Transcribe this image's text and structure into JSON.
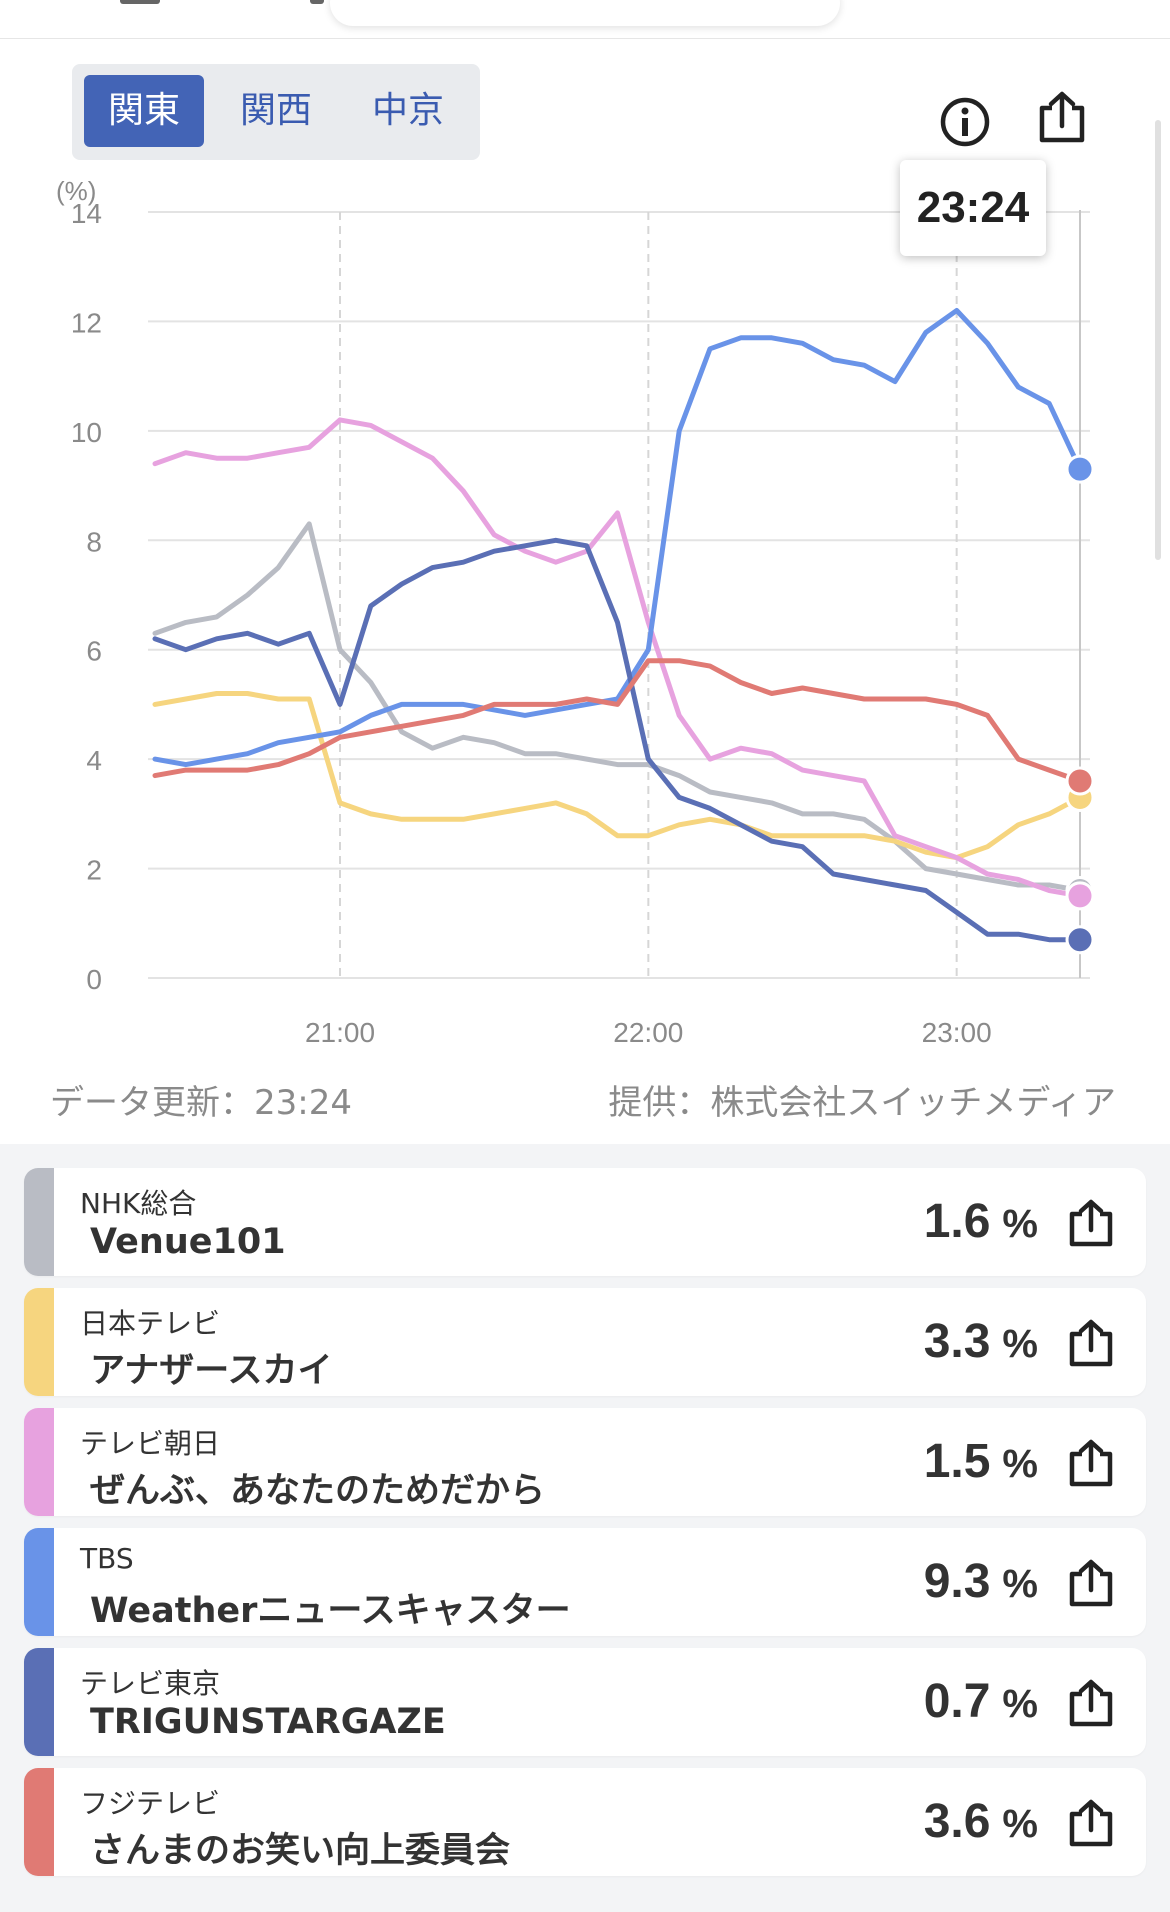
{
  "region_tabs": [
    {
      "label": "関東",
      "active": true
    },
    {
      "label": "関西",
      "active": false
    },
    {
      "label": "中京",
      "active": false
    }
  ],
  "icons": {
    "info": "info-icon",
    "share": "share-icon"
  },
  "tooltip_time": "23:24",
  "footer": {
    "updated": "データ更新：23:24",
    "provider": "提供：株式会社スイッチメディア"
  },
  "chart_data": {
    "type": "line",
    "ylabel": "(%)",
    "ylim": [
      0,
      14
    ],
    "yticks": [
      "0",
      "2",
      "4",
      "6",
      "8",
      "10",
      "12",
      "14"
    ],
    "xtick_labels": [
      "21:00",
      "22:00",
      "23:00"
    ],
    "x": [
      "20:24",
      "20:30",
      "20:36",
      "20:42",
      "20:48",
      "20:54",
      "21:00",
      "21:06",
      "21:12",
      "21:18",
      "21:24",
      "21:30",
      "21:36",
      "21:42",
      "21:48",
      "21:54",
      "22:00",
      "22:06",
      "22:12",
      "22:18",
      "22:24",
      "22:30",
      "22:36",
      "22:42",
      "22:48",
      "22:54",
      "23:00",
      "23:06",
      "23:12",
      "23:18",
      "23:24"
    ],
    "grid": "on",
    "series": [
      {
        "name": "NHK総合",
        "color": "#b9bcc4",
        "values": [
          6.3,
          6.5,
          6.6,
          7.0,
          7.5,
          8.3,
          6.0,
          5.4,
          4.5,
          4.2,
          4.4,
          4.3,
          4.1,
          4.1,
          4.0,
          3.9,
          3.9,
          3.7,
          3.4,
          3.3,
          3.2,
          3.0,
          3.0,
          2.9,
          2.5,
          2.0,
          1.9,
          1.8,
          1.7,
          1.7,
          1.6
        ]
      },
      {
        "name": "日本テレビ",
        "color": "#f6d57f",
        "values": [
          5.0,
          5.1,
          5.2,
          5.2,
          5.1,
          5.1,
          3.2,
          3.0,
          2.9,
          2.9,
          2.9,
          3.0,
          3.1,
          3.2,
          3.0,
          2.6,
          2.6,
          2.8,
          2.9,
          2.8,
          2.6,
          2.6,
          2.6,
          2.6,
          2.5,
          2.3,
          2.2,
          2.4,
          2.8,
          3.0,
          3.3
        ]
      },
      {
        "name": "テレビ朝日",
        "color": "#e7a2df",
        "values": [
          9.4,
          9.6,
          9.5,
          9.5,
          9.6,
          9.7,
          10.2,
          10.1,
          9.8,
          9.5,
          8.9,
          8.1,
          7.8,
          7.6,
          7.8,
          8.5,
          6.5,
          4.8,
          4.0,
          4.2,
          4.1,
          3.8,
          3.7,
          3.6,
          2.6,
          2.4,
          2.2,
          1.9,
          1.8,
          1.6,
          1.5
        ]
      },
      {
        "name": "TBS",
        "color": "#6993e8",
        "values": [
          4.0,
          3.9,
          4.0,
          4.1,
          4.3,
          4.4,
          4.5,
          4.8,
          5.0,
          5.0,
          5.0,
          4.9,
          4.8,
          4.9,
          5.0,
          5.1,
          6.0,
          10.0,
          11.5,
          11.7,
          11.7,
          11.6,
          11.3,
          11.2,
          10.9,
          11.8,
          12.2,
          11.6,
          10.8,
          10.5,
          9.3
        ]
      },
      {
        "name": "テレビ東京",
        "color": "#5a6fb5",
        "values": [
          6.2,
          6.0,
          6.2,
          6.3,
          6.1,
          6.3,
          5.0,
          6.8,
          7.2,
          7.5,
          7.6,
          7.8,
          7.9,
          8.0,
          7.9,
          6.5,
          4.0,
          3.3,
          3.1,
          2.8,
          2.5,
          2.4,
          1.9,
          1.8,
          1.7,
          1.6,
          1.2,
          0.8,
          0.8,
          0.7,
          0.7
        ]
      },
      {
        "name": "フジテレビ",
        "color": "#e07a74",
        "values": [
          3.7,
          3.8,
          3.8,
          3.8,
          3.9,
          4.1,
          4.4,
          4.5,
          4.6,
          4.7,
          4.8,
          5.0,
          5.0,
          5.0,
          5.1,
          5.0,
          5.8,
          5.8,
          5.7,
          5.4,
          5.2,
          5.3,
          5.2,
          5.1,
          5.1,
          5.1,
          5.0,
          4.8,
          4.0,
          3.8,
          3.6
        ]
      }
    ]
  },
  "channels": [
    {
      "station": "NHK総合",
      "program": "Venue101",
      "value": "1.6",
      "unit": "%",
      "color": "#b9bcc4"
    },
    {
      "station": "日本テレビ",
      "program": "アナザースカイ",
      "value": "3.3",
      "unit": "%",
      "color": "#f6d57f"
    },
    {
      "station": "テレビ朝日",
      "program": "ぜんぶ、あなたのためだから",
      "value": "1.5",
      "unit": "%",
      "color": "#e7a2df"
    },
    {
      "station": "TBS",
      "program": "Weatherニュースキャスター",
      "value": "9.3",
      "unit": "%",
      "color": "#6993e8"
    },
    {
      "station": "テレビ東京",
      "program": "TRIGUNSTARGAZE",
      "value": "0.7",
      "unit": "%",
      "color": "#5a6fb5"
    },
    {
      "station": "フジテレビ",
      "program": "さんまのお笑い向上委員会",
      "value": "3.6",
      "unit": "%",
      "color": "#e07a74"
    }
  ]
}
